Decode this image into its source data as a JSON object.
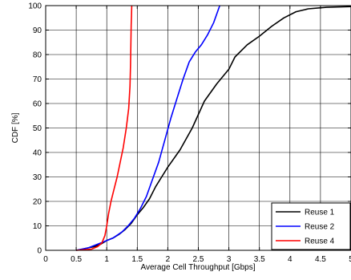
{
  "chart_data": {
    "type": "line",
    "xlabel": "Average Cell Throughput [Gbps]",
    "ylabel": "CDF [%]",
    "xlim": [
      0,
      5
    ],
    "ylim": [
      0,
      100
    ],
    "xticks": [
      0,
      0.5,
      1,
      1.5,
      2,
      2.5,
      3,
      3.5,
      4,
      4.5,
      5
    ],
    "xtick_labels": [
      "0",
      "0.5",
      "1",
      "1.5",
      "2",
      "2.5",
      "3",
      "3.5",
      "4",
      "4.5",
      "5"
    ],
    "yticks": [
      0,
      10,
      20,
      30,
      40,
      50,
      60,
      70,
      80,
      90,
      100
    ],
    "ytick_labels": [
      "0",
      "10",
      "20",
      "30",
      "40",
      "50",
      "60",
      "70",
      "80",
      "90",
      "100"
    ],
    "grid": true,
    "legend_position": "bottom-right",
    "series": [
      {
        "name": "Reuse 1",
        "color": "#000000",
        "points": [
          [
            0.5,
            0
          ],
          [
            0.6,
            0.5
          ],
          [
            0.7,
            1
          ],
          [
            0.8,
            1.5
          ],
          [
            0.9,
            2.5
          ],
          [
            1.0,
            4
          ],
          [
            1.1,
            5
          ],
          [
            1.2,
            6.5
          ],
          [
            1.3,
            8.5
          ],
          [
            1.4,
            11
          ],
          [
            1.5,
            14.5
          ],
          [
            1.6,
            17.5
          ],
          [
            1.7,
            21
          ],
          [
            1.8,
            26
          ],
          [
            1.9,
            30
          ],
          [
            2.0,
            34
          ],
          [
            2.2,
            41
          ],
          [
            2.4,
            50
          ],
          [
            2.6,
            61
          ],
          [
            2.8,
            68
          ],
          [
            3.0,
            74
          ],
          [
            3.1,
            79
          ],
          [
            3.3,
            84
          ],
          [
            3.5,
            87.5
          ],
          [
            3.7,
            91.5
          ],
          [
            3.9,
            95
          ],
          [
            4.1,
            97.5
          ],
          [
            4.3,
            98.7
          ],
          [
            4.6,
            99.3
          ],
          [
            5.0,
            99.6
          ]
        ]
      },
      {
        "name": "Reuse 2",
        "color": "#0000ff",
        "points": [
          [
            0.5,
            0
          ],
          [
            0.7,
            1
          ],
          [
            0.9,
            3
          ],
          [
            1.1,
            5
          ],
          [
            1.25,
            7.5
          ],
          [
            1.35,
            10
          ],
          [
            1.45,
            13
          ],
          [
            1.55,
            17
          ],
          [
            1.65,
            22
          ],
          [
            1.75,
            29
          ],
          [
            1.85,
            36
          ],
          [
            1.95,
            45
          ],
          [
            2.05,
            54
          ],
          [
            2.15,
            62
          ],
          [
            2.25,
            70
          ],
          [
            2.35,
            77
          ],
          [
            2.45,
            81
          ],
          [
            2.55,
            84
          ],
          [
            2.65,
            88
          ],
          [
            2.75,
            93
          ],
          [
            2.85,
            100
          ]
        ]
      },
      {
        "name": "Reuse 4",
        "color": "#ff0000",
        "points": [
          [
            0.5,
            0
          ],
          [
            0.75,
            0.5
          ],
          [
            0.85,
            1.5
          ],
          [
            0.92,
            3
          ],
          [
            0.97,
            6
          ],
          [
            1.0,
            10
          ],
          [
            1.03,
            15
          ],
          [
            1.07,
            20
          ],
          [
            1.12,
            25
          ],
          [
            1.17,
            30
          ],
          [
            1.22,
            36
          ],
          [
            1.27,
            42
          ],
          [
            1.32,
            50
          ],
          [
            1.36,
            58
          ],
          [
            1.38,
            67
          ],
          [
            1.39,
            76
          ],
          [
            1.395,
            84
          ],
          [
            1.4,
            92
          ],
          [
            1.405,
            96
          ],
          [
            1.41,
            100
          ]
        ]
      }
    ]
  }
}
